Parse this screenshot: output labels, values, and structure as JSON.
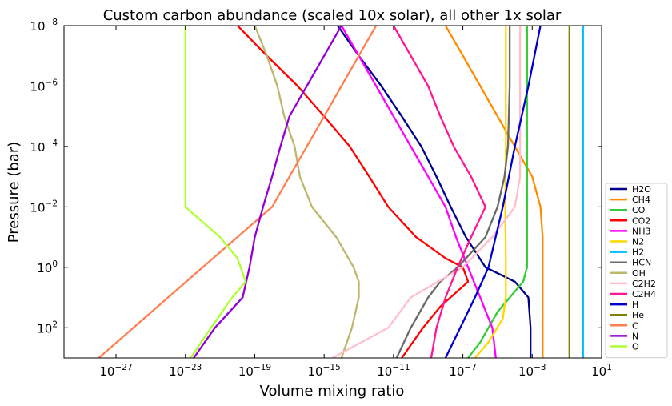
{
  "chart_data": {
    "type": "line",
    "title": "Custom carbon abundance (scaled 10x solar), all other 1x solar",
    "xlabel": "Volume mixing ratio",
    "ylabel": "Pressure (bar)",
    "x_scale": "log",
    "y_scale": "log",
    "y_inverted": true,
    "xlim": [
      1e-30,
      10
    ],
    "ylim": [
      1000,
      1e-08
    ],
    "x_ticks": [
      {
        "base": "10",
        "exp": "−27",
        "value": 1e-27
      },
      {
        "base": "10",
        "exp": "−23",
        "value": 1e-23
      },
      {
        "base": "10",
        "exp": "−19",
        "value": 1e-19
      },
      {
        "base": "10",
        "exp": "−15",
        "value": 1e-15
      },
      {
        "base": "10",
        "exp": "−11",
        "value": 1e-11
      },
      {
        "base": "10",
        "exp": "−7",
        "value": 1e-07
      },
      {
        "base": "10",
        "exp": "−3",
        "value": 0.001
      },
      {
        "base": "10",
        "exp": "1",
        "value": 10
      }
    ],
    "y_ticks": [
      {
        "base": "10",
        "exp": "−8",
        "value": 1e-08
      },
      {
        "base": "10",
        "exp": "−6",
        "value": 1e-06
      },
      {
        "base": "10",
        "exp": "−4",
        "value": 0.0001
      },
      {
        "base": "10",
        "exp": "−2",
        "value": 0.01
      },
      {
        "base": "10",
        "exp": "0",
        "value": 1
      },
      {
        "base": "10",
        "exp": "2",
        "value": 100
      }
    ],
    "legend_position": "lower-right",
    "series": [
      {
        "name": "H2O",
        "color": "#00008b",
        "points": [
          [
            6e-15,
            1e-08
          ],
          [
            1e-13,
            1e-07
          ],
          [
            2e-12,
            1e-06
          ],
          [
            3e-11,
            1e-05
          ],
          [
            4e-10,
            0.0001
          ],
          [
            3e-09,
            0.001
          ],
          [
            2e-08,
            0.01
          ],
          [
            1.5e-07,
            0.1
          ],
          [
            2e-06,
            1
          ],
          [
            0.0001,
            3
          ],
          [
            0.0006,
            10
          ],
          [
            0.0008,
            100
          ],
          [
            0.0008,
            1000
          ]
        ]
      },
      {
        "name": "CH4",
        "color": "#ff8c00",
        "points": [
          [
            1e-08,
            1e-08
          ],
          [
            1e-07,
            1e-07
          ],
          [
            1e-06,
            1e-06
          ],
          [
            1e-05,
            1e-05
          ],
          [
            0.0001,
            0.0001
          ],
          [
            0.001,
            0.001
          ],
          [
            0.003,
            0.01
          ],
          [
            0.004,
            0.1
          ],
          [
            0.004,
            1
          ],
          [
            0.004,
            100
          ],
          [
            0.004,
            1000
          ]
        ]
      },
      {
        "name": "CO",
        "color": "#32cd32",
        "points": [
          [
            0.0005,
            1e-08
          ],
          [
            0.0005,
            0.001
          ],
          [
            0.0005,
            0.1
          ],
          [
            0.0005,
            1
          ],
          [
            0.0003,
            3
          ],
          [
            1e-05,
            30
          ],
          [
            1e-06,
            300
          ],
          [
            2e-07,
            1000
          ]
        ]
      },
      {
        "name": "CO2",
        "color": "#ff0000",
        "points": [
          [
            1e-20,
            1e-08
          ],
          [
            5e-19,
            1e-07
          ],
          [
            3e-17,
            1e-06
          ],
          [
            1e-15,
            1e-05
          ],
          [
            3e-14,
            0.0001
          ],
          [
            4e-13,
            0.001
          ],
          [
            5e-12,
            0.01
          ],
          [
            2e-10,
            0.1
          ],
          [
            1e-08,
            0.5
          ],
          [
            1e-07,
            1
          ],
          [
            2e-07,
            3
          ],
          [
            5e-09,
            20
          ],
          [
            5e-10,
            100
          ],
          [
            3e-11,
            1000
          ]
        ]
      },
      {
        "name": "NH3",
        "color": "#ff00ff",
        "points": [
          [
            1e-14,
            1e-08
          ],
          [
            1e-13,
            1e-07
          ],
          [
            1e-12,
            1e-06
          ],
          [
            1e-11,
            1e-05
          ],
          [
            1e-10,
            0.0001
          ],
          [
            1e-09,
            0.001
          ],
          [
            1e-08,
            0.01
          ],
          [
            4e-08,
            0.1
          ],
          [
            2e-07,
            1
          ],
          [
            1e-06,
            10
          ],
          [
            5e-06,
            100
          ],
          [
            8e-06,
            1000
          ]
        ]
      },
      {
        "name": "N2",
        "color": "#ffd700",
        "points": [
          [
            3e-05,
            1e-08
          ],
          [
            3e-05,
            1e-06
          ],
          [
            3e-05,
            0.0001
          ],
          [
            2.8e-05,
            0.01
          ],
          [
            3e-05,
            1
          ],
          [
            3e-05,
            10
          ],
          [
            2e-05,
            50
          ],
          [
            3e-06,
            300
          ],
          [
            5e-07,
            1000
          ]
        ]
      },
      {
        "name": "H2",
        "color": "#00bfff",
        "points": [
          [
            0.85,
            1e-08
          ],
          [
            0.85,
            1000
          ]
        ]
      },
      {
        "name": "HCN",
        "color": "#696969",
        "points": [
          [
            5e-05,
            1e-08
          ],
          [
            5e-05,
            1e-06
          ],
          [
            4e-05,
            0.0001
          ],
          [
            2.5e-05,
            0.001
          ],
          [
            1e-05,
            0.01
          ],
          [
            2e-06,
            0.1
          ],
          [
            5e-08,
            1
          ],
          [
            5e-09,
            3
          ],
          [
            1e-09,
            10
          ],
          [
            1e-10,
            100
          ],
          [
            1.5e-11,
            1000
          ]
        ]
      },
      {
        "name": "OH",
        "color": "#bdb76b",
        "points": [
          [
            1e-19,
            1e-08
          ],
          [
            5e-19,
            1e-07
          ],
          [
            2e-18,
            1e-06
          ],
          [
            5e-18,
            1e-05
          ],
          [
            2e-17,
            0.0001
          ],
          [
            4e-17,
            0.001
          ],
          [
            2e-16,
            0.01
          ],
          [
            5e-15,
            0.1
          ],
          [
            5e-14,
            1
          ],
          [
            1e-13,
            3
          ],
          [
            1e-13,
            10
          ],
          [
            4e-14,
            100
          ],
          [
            1e-14,
            1000
          ]
        ]
      },
      {
        "name": "C2H2",
        "color": "#ffc0cb",
        "points": [
          [
            0.0002,
            1e-08
          ],
          [
            0.0002,
            1e-05
          ],
          [
            0.0002,
            0.001
          ],
          [
            0.0001,
            0.01
          ],
          [
            5e-06,
            0.1
          ],
          [
            1e-07,
            1
          ],
          [
            1e-10,
            10
          ],
          [
            5e-12,
            100
          ],
          [
            3e-15,
            1000
          ]
        ]
      },
      {
        "name": "C2H4",
        "color": "#ff1493",
        "points": [
          [
            1e-11,
            1e-08
          ],
          [
            1e-10,
            1e-07
          ],
          [
            1e-09,
            1e-06
          ],
          [
            5e-09,
            1e-05
          ],
          [
            3e-08,
            0.0001
          ],
          [
            3e-07,
            0.001
          ],
          [
            2e-06,
            0.01
          ],
          [
            3e-07,
            0.1
          ],
          [
            5e-08,
            1
          ],
          [
            1e-08,
            10
          ],
          [
            3e-09,
            100
          ],
          [
            1.5e-09,
            1000
          ]
        ]
      },
      {
        "name": "H",
        "color": "#0000cd",
        "points": [
          [
            0.003,
            1e-08
          ],
          [
            0.0006,
            1e-06
          ],
          [
            0.0001,
            0.0001
          ],
          [
            2e-05,
            0.01
          ],
          [
            3e-06,
            1
          ],
          [
            5e-07,
            10
          ],
          [
            1e-08,
            1000
          ]
        ]
      },
      {
        "name": "He",
        "color": "#808000",
        "points": [
          [
            0.14,
            1e-08
          ],
          [
            0.14,
            1000
          ]
        ]
      },
      {
        "name": "C",
        "color": "#ff7f50",
        "points": [
          [
            1e-12,
            1e-08
          ],
          [
            1e-13,
            1e-07
          ],
          [
            1e-14,
            1e-06
          ],
          [
            1e-15,
            1e-05
          ],
          [
            1e-16,
            0.0001
          ],
          [
            1e-17,
            0.001
          ],
          [
            1e-18,
            0.01
          ],
          [
            1e-20,
            0.1
          ],
          [
            1e-22,
            1
          ],
          [
            1e-24,
            10
          ],
          [
            1e-26,
            100
          ],
          [
            1e-28,
            1000
          ]
        ]
      },
      {
        "name": "N",
        "color": "#9400d3",
        "points": [
          [
            1e-14,
            1e-08
          ],
          [
            1e-15,
            1e-07
          ],
          [
            1e-16,
            1e-06
          ],
          [
            1e-17,
            1e-05
          ],
          [
            3e-18,
            0.0001
          ],
          [
            1e-18,
            0.001
          ],
          [
            3e-19,
            0.01
          ],
          [
            1e-19,
            0.1
          ],
          [
            5e-20,
            1
          ],
          [
            2e-20,
            10
          ],
          [
            5e-22,
            100
          ],
          [
            3e-23,
            1000
          ]
        ]
      },
      {
        "name": "O",
        "color": "#adff2f",
        "points": [
          [
            1e-23,
            1e-08
          ],
          [
            1e-23,
            1e-06
          ],
          [
            1e-23,
            0.0001
          ],
          [
            1e-23,
            0.01
          ],
          [
            1e-21,
            0.1
          ],
          [
            1e-20,
            0.5
          ],
          [
            3e-20,
            3
          ],
          [
            5e-21,
            10
          ],
          [
            3e-22,
            100
          ],
          [
            2e-23,
            1000
          ]
        ]
      }
    ]
  }
}
